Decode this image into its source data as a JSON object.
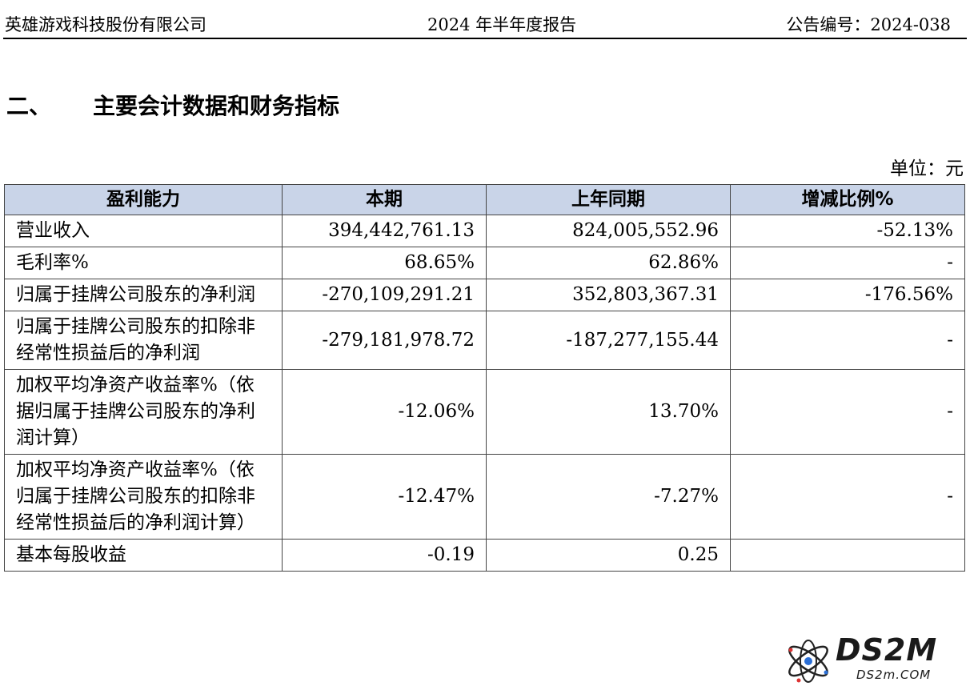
{
  "header": {
    "company": "英雄游戏科技股份有限公司",
    "report": "2024 年半年度报告",
    "notice_no": "公告编号：2024-038"
  },
  "section": {
    "number": "二、",
    "title": "主要会计数据和财务指标"
  },
  "unit": "单位：元",
  "table": {
    "headers": [
      "盈利能力",
      "本期",
      "上年同期",
      "增减比例%"
    ],
    "rows": [
      [
        "营业收入",
        "394,442,761.13",
        "824,005,552.96",
        "-52.13%"
      ],
      [
        "毛利率%",
        "68.65%",
        "62.86%",
        "-"
      ],
      [
        "归属于挂牌公司股东的净利润",
        "-270,109,291.21",
        "352,803,367.31",
        "-176.56%"
      ],
      [
        "归属于挂牌公司股东的扣除非经常性损益后的净利润",
        "-279,181,978.72",
        "-187,277,155.44",
        "-"
      ],
      [
        "加权平均净资产收益率%（依据归属于挂牌公司股东的净利润计算）",
        "-12.06%",
        "13.70%",
        "-"
      ],
      [
        "加权平均净资产收益率%（依归属于挂牌公司股东的扣除非经常性损益后的净利润计算）",
        "-12.47%",
        "-7.27%",
        "-"
      ],
      [
        "基本每股收益",
        "-0.19",
        "0.25",
        ""
      ]
    ]
  },
  "watermark": {
    "brand": "DS2M",
    "site": "DS2m.COM",
    "icon": "atom-logo-icon"
  }
}
